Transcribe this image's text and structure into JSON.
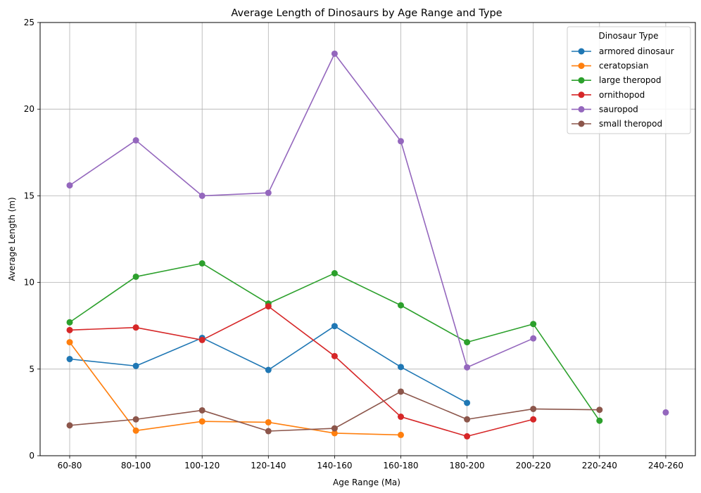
{
  "chart_data": {
    "type": "line",
    "title": "Average Length of Dinosaurs by Age Range and Type",
    "xlabel": "Age Range (Ma)",
    "ylabel": "Average Length (m)",
    "categories": [
      "60-80",
      "80-100",
      "100-120",
      "120-140",
      "140-160",
      "160-180",
      "180-200",
      "200-220",
      "220-240",
      "240-260"
    ],
    "ylim": [
      0,
      25
    ],
    "yticks": [
      "0",
      "5",
      "10",
      "15",
      "20",
      "25"
    ],
    "grid": true,
    "legend": {
      "title": "Dinosaur Type",
      "placement": "top-right"
    },
    "series": [
      {
        "name": "armored dinosaur",
        "color": "#1f77b4",
        "values": [
          5.58,
          5.18,
          6.8,
          4.95,
          7.48,
          5.12,
          3.05,
          null,
          null,
          null
        ]
      },
      {
        "name": "ceratopsian",
        "color": "#ff7f0e",
        "values": [
          6.55,
          1.45,
          1.98,
          1.93,
          1.3,
          1.2,
          null,
          null,
          null,
          null
        ]
      },
      {
        "name": "large theropod",
        "color": "#2ca02c",
        "values": [
          7.7,
          10.33,
          11.1,
          8.78,
          10.53,
          8.68,
          6.55,
          7.6,
          2.02,
          null
        ]
      },
      {
        "name": "ornithopod",
        "color": "#d62728",
        "values": [
          7.25,
          7.4,
          6.68,
          8.62,
          5.75,
          2.25,
          1.12,
          2.1,
          null,
          null
        ]
      },
      {
        "name": "sauropod",
        "color": "#9467bd",
        "values": [
          15.6,
          18.2,
          15.0,
          15.17,
          23.2,
          18.15,
          5.1,
          6.77,
          null,
          2.5
        ]
      },
      {
        "name": "small theropod",
        "color": "#8c564b",
        "values": [
          1.75,
          2.1,
          2.62,
          1.42,
          1.58,
          3.7,
          2.1,
          2.7,
          2.65,
          null
        ]
      }
    ]
  }
}
